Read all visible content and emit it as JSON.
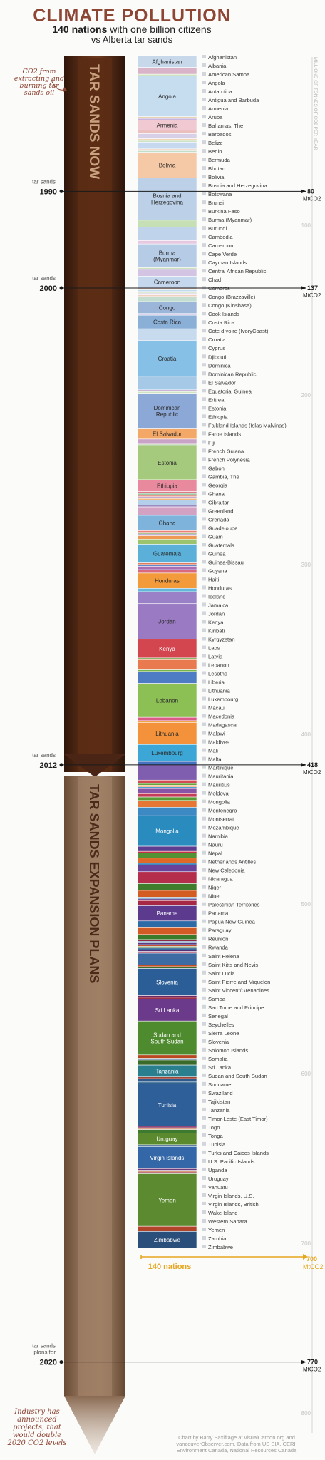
{
  "title": "CLIMATE POLLUTION",
  "subtitle": {
    "bold_part": "140 nations",
    "rest_line1": "with one billion citizens",
    "line2": "vs Alberta tar sands"
  },
  "annotation_top": "CO2 from extracting and burning tar sands oil",
  "annotation_bottom": "Industry has announced projects, that would double 2020 CO2 levels",
  "arrow_labels": {
    "now": "TAR SANDS NOW",
    "expansion": "TAR SANDS EXPANSION PLANS"
  },
  "axis_title": "MILLIONS OF TONNES OF CO2 PER YEAR",
  "nations_label": "140 nations",
  "credit": "Chart by Barry Saxifrage at visualCarbon.org and vancouverObserver.com. Data from US EIA, CERI, Environment Canada, National Resources Canada",
  "colors": {
    "title": "#8d4534",
    "accent_orange": "#e7a61f",
    "arrow_dark": "#4a2414",
    "arrow_light": "#8a6a52"
  },
  "chart_data": {
    "type": "bar",
    "ylabel": "MILLIONS OF TONNES OF CO2 PER YEAR",
    "ylim": [
      0,
      800
    ],
    "yticks": [
      100,
      200,
      300,
      400,
      500,
      600,
      700,
      800
    ],
    "markers": [
      {
        "pre": "tar sands",
        "year": "1990",
        "value": 80,
        "value_label": "80",
        "unit": "MtCO2"
      },
      {
        "pre": "tar sands",
        "year": "2000",
        "value": 137,
        "value_label": "137",
        "unit": "MtCO2"
      },
      {
        "pre": "tar sands",
        "year": "2012",
        "value": 418,
        "value_label": "418",
        "unit": "MtCO2"
      },
      {
        "pre": "tar sands plans for",
        "year": "2020",
        "value": 770,
        "value_label": "770",
        "unit": "MtCO2"
      }
    ],
    "nations_total": {
      "value": 700,
      "value_label": "700",
      "unit": "MtCO2"
    },
    "stack": [
      {
        "name": "Afghanistan",
        "value": 7,
        "color": "#c7d8ea",
        "label": "Afghanistan"
      },
      {
        "name": "Albania",
        "value": 4,
        "color": "#d9b3c7"
      },
      {
        "name": "American Samoa",
        "value": 1,
        "color": "#cfe3c0"
      },
      {
        "name": "Angola",
        "value": 24,
        "color": "#c6dcef",
        "label": "Angola"
      },
      {
        "name": "Antarctica",
        "value": 1,
        "color": "#e8d2b4"
      },
      {
        "name": "Antigua and Barbuda",
        "value": 1,
        "color": "#c9b5db"
      },
      {
        "name": "Armenia",
        "value": 6,
        "color": "#f1c9d2",
        "label": "Armenia"
      },
      {
        "name": "Aruba",
        "value": 2,
        "color": "#ecbfbf"
      },
      {
        "name": "Bahamas, The",
        "value": 3,
        "color": "#d7d0e6"
      },
      {
        "name": "Barbados",
        "value": 1,
        "color": "#f0d7b7"
      },
      {
        "name": "Belize",
        "value": 1,
        "color": "#cfe2c3"
      },
      {
        "name": "Benin",
        "value": 4,
        "color": "#c7d9ee"
      },
      {
        "name": "Bermuda",
        "value": 1,
        "color": "#f3d3c3"
      },
      {
        "name": "Bhutan",
        "value": 1,
        "color": "#c3ddc8"
      },
      {
        "name": "Bolivia",
        "value": 15,
        "color": "#f6c9a6",
        "label": "Bolivia"
      },
      {
        "name": "Bosnia and Herzegovina",
        "value": 25,
        "color": "#bcd1e8",
        "label": "Bosnia and Herzegovina"
      },
      {
        "name": "Botswana",
        "value": 4,
        "color": "#c6dfb5"
      },
      {
        "name": "Brunei",
        "value": 8,
        "color": "#bfd4ea"
      },
      {
        "name": "Burkina Faso",
        "value": 2,
        "color": "#e6c9e0"
      },
      {
        "name": "Burma (Myanmar)",
        "value": 14,
        "color": "#b6cbe6",
        "label": "Burma (Myanmar)"
      },
      {
        "name": "Burundi",
        "value": 1,
        "color": "#cce3b9"
      },
      {
        "name": "Cambodia",
        "value": 4,
        "color": "#d2c4e2"
      },
      {
        "name": "Cameroon",
        "value": 7,
        "color": "#c4d7ec",
        "label": "Cameroon"
      },
      {
        "name": "Cape Verde",
        "value": 1,
        "color": "#e9c8b5"
      },
      {
        "name": "Cayman Islands",
        "value": 1,
        "color": "#c1d9ec"
      },
      {
        "name": "Central African Republic",
        "value": 1,
        "color": "#d8e7c5"
      },
      {
        "name": "Chad",
        "value": 1,
        "color": "#ccc3de"
      },
      {
        "name": "Comoros",
        "value": 1,
        "color": "#f1d0c0"
      },
      {
        "name": "Congo (Brazzaville)",
        "value": 3,
        "color": "#c3ddd0"
      },
      {
        "name": "Congo (Kinshasa)",
        "value": 7,
        "color": "#9bb6d9",
        "label": "Congo"
      },
      {
        "name": "Cook Islands",
        "value": 1,
        "color": "#d5c3e4"
      },
      {
        "name": "Costa Rica",
        "value": 8,
        "color": "#8ab0d8",
        "label": "Costa Rica"
      },
      {
        "name": "Cote dIvoire (IvoryCoast)",
        "value": 7,
        "color": "#c8dbee"
      },
      {
        "name": "Croatia",
        "value": 21,
        "color": "#86c0e6",
        "label": "Croatia"
      },
      {
        "name": "Cyprus",
        "value": 8,
        "color": "#a6c9e8"
      },
      {
        "name": "Djibouti",
        "value": 1,
        "color": "#c2a6cf"
      },
      {
        "name": "Dominica",
        "value": 1,
        "color": "#cfe3c2"
      },
      {
        "name": "Dominican Republic",
        "value": 21,
        "color": "#8ca8d6",
        "label": "Dominican Republic"
      },
      {
        "name": "El Salvador",
        "value": 6,
        "color": "#f3a867",
        "label": "El Salvador"
      },
      {
        "name": "Equatorial Guinea",
        "value": 3,
        "color": "#c9a3c7"
      },
      {
        "name": "Eritrea",
        "value": 1,
        "color": "#bcd5a7"
      },
      {
        "name": "Estonia",
        "value": 20,
        "color": "#a6ca7d",
        "label": "Estonia"
      },
      {
        "name": "Ethiopia",
        "value": 7,
        "color": "#e8899d",
        "label": "Ethiopia"
      },
      {
        "name": "Falkland Islands (Islas Malvinas)",
        "value": 1,
        "color": "#d97a85"
      },
      {
        "name": "Faroe Islands",
        "value": 1,
        "color": "#9fc6a5"
      },
      {
        "name": "Fiji",
        "value": 1,
        "color": "#e49a8e"
      },
      {
        "name": "French Guiana",
        "value": 1,
        "color": "#bca2cc"
      },
      {
        "name": "French Polynesia",
        "value": 1,
        "color": "#f3b97e"
      },
      {
        "name": "Gabon",
        "value": 3,
        "color": "#b3cfe9"
      },
      {
        "name": "Gambia, The",
        "value": 1,
        "color": "#9e8ac0"
      },
      {
        "name": "Georgia",
        "value": 5,
        "color": "#d3a1c2"
      },
      {
        "name": "Ghana",
        "value": 9,
        "color": "#7eb4dc",
        "label": "Ghana"
      },
      {
        "name": "Gibraltar",
        "value": 1,
        "color": "#e9837a"
      },
      {
        "name": "Greenland",
        "value": 1,
        "color": "#8fb472"
      },
      {
        "name": "Grenada",
        "value": 1,
        "color": "#8a6fb0"
      },
      {
        "name": "Guadeloupe",
        "value": 2,
        "color": "#ef9a54"
      },
      {
        "name": "Guam",
        "value": 3,
        "color": "#9cc46e"
      },
      {
        "name": "Guatemala",
        "value": 11,
        "color": "#5ab0d9",
        "label": "Guatemala"
      },
      {
        "name": "Guinea",
        "value": 1,
        "color": "#e07b62"
      },
      {
        "name": "Guinea-Bissau",
        "value": 1,
        "color": "#5e8dcc"
      },
      {
        "name": "Guyana",
        "value": 2,
        "color": "#a86fb5"
      },
      {
        "name": "Haiti",
        "value": 2,
        "color": "#d96a7c"
      },
      {
        "name": "Honduras",
        "value": 9,
        "color": "#f39a3a",
        "label": "Honduras"
      },
      {
        "name": "Iceland",
        "value": 2,
        "color": "#67b6d9"
      },
      {
        "name": "Jamaica",
        "value": 7,
        "color": "#9a80c6"
      },
      {
        "name": "Jordan",
        "value": 21,
        "color": "#9b7ac4",
        "label": "Jordan"
      },
      {
        "name": "Kenya",
        "value": 11,
        "color": "#d4464f",
        "label": "Kenya"
      },
      {
        "name": "Kiribati",
        "value": 1,
        "color": "#69a948"
      },
      {
        "name": "Kyrgyzstan",
        "value": 6,
        "color": "#e9794e"
      },
      {
        "name": "Laos",
        "value": 1,
        "color": "#78b44e"
      },
      {
        "name": "Latvia",
        "value": 7,
        "color": "#4d7bc4"
      },
      {
        "name": "Lebanon",
        "value": 20,
        "color": "#8cc055",
        "label": "Lebanon"
      },
      {
        "name": "Lesotho",
        "value": 2,
        "color": "#da5a86"
      },
      {
        "name": "Liberia",
        "value": 1,
        "color": "#efa648"
      },
      {
        "name": "Lithuania",
        "value": 13,
        "color": "#f3923a",
        "label": "Lithuania"
      },
      {
        "name": "Luxembourg",
        "value": 10,
        "color": "#3ca7d6",
        "label": "Luxembourg"
      },
      {
        "name": "Macau",
        "value": 2,
        "color": "#4773bf"
      },
      {
        "name": "Macedonia",
        "value": 9,
        "color": "#7f5daf"
      },
      {
        "name": "Madagascar",
        "value": 2,
        "color": "#d14a55"
      },
      {
        "name": "Malawi",
        "value": 1,
        "color": "#63a53c"
      },
      {
        "name": "Maldives",
        "value": 1,
        "color": "#ec7f36"
      },
      {
        "name": "Mali",
        "value": 1,
        "color": "#3f9acf"
      },
      {
        "name": "Malta",
        "value": 3,
        "color": "#8854a8"
      },
      {
        "name": "Martinique",
        "value": 2,
        "color": "#c43c58"
      },
      {
        "name": "Mauritania",
        "value": 2,
        "color": "#5a9a35"
      },
      {
        "name": "Mauritius",
        "value": 4,
        "color": "#e77734"
      },
      {
        "name": "Moldova",
        "value": 5,
        "color": "#3d89c4"
      },
      {
        "name": "Mongolia",
        "value": 18,
        "color": "#2a8bbf",
        "label": "Mongolia"
      },
      {
        "name": "Montenegro",
        "value": 3,
        "color": "#5c3d90"
      },
      {
        "name": "Montserrat",
        "value": 1,
        "color": "#c42f48"
      },
      {
        "name": "Mozambique",
        "value": 3,
        "color": "#519234"
      },
      {
        "name": "Namibia",
        "value": 3,
        "color": "#df6a28"
      },
      {
        "name": "Nauru",
        "value": 1,
        "color": "#2f7cb8"
      },
      {
        "name": "Nepal",
        "value": 4,
        "color": "#6a4199"
      },
      {
        "name": "Netherlands Antilles",
        "value": 7,
        "color": "#b42e4c"
      },
      {
        "name": "New Caledonia",
        "value": 4,
        "color": "#3f7d2d"
      },
      {
        "name": "Nicaragua",
        "value": 4,
        "color": "#d35c23"
      },
      {
        "name": "Niger",
        "value": 1,
        "color": "#2a6eaa"
      },
      {
        "name": "Niue",
        "value": 1,
        "color": "#5f3a8e"
      },
      {
        "name": "Palestinian Territories",
        "value": 3,
        "color": "#a62844"
      },
      {
        "name": "Panama",
        "value": 9,
        "color": "#5c3b8f",
        "label": "Panama"
      },
      {
        "name": "Papua New Guinea",
        "value": 4,
        "color": "#2d6ba7"
      },
      {
        "name": "Paraguay",
        "value": 4,
        "color": "#d25a24"
      },
      {
        "name": "Reunion",
        "value": 3,
        "color": "#3a7a2b"
      },
      {
        "name": "Rwanda",
        "value": 1,
        "color": "#8f2a44"
      },
      {
        "name": "Saint Helena",
        "value": 1,
        "color": "#245f98"
      },
      {
        "name": "Saint Kitts and Nevis",
        "value": 1,
        "color": "#53337f"
      },
      {
        "name": "Saint Lucia",
        "value": 1,
        "color": "#c6512a"
      },
      {
        "name": "Saint Pierre and Miquelon",
        "value": 1,
        "color": "#356f2c"
      },
      {
        "name": "Saint Vincent/Grenadines",
        "value": 1,
        "color": "#2a5f95"
      },
      {
        "name": "Samoa",
        "value": 1,
        "color": "#4f3079"
      },
      {
        "name": "Sao Tome and Principe",
        "value": 1,
        "color": "#9b2b44"
      },
      {
        "name": "Senegal",
        "value": 7,
        "color": "#3d6ba4"
      },
      {
        "name": "Seychelles",
        "value": 1,
        "color": "#c24f25"
      },
      {
        "name": "Sierra Leone",
        "value": 1,
        "color": "#3d6e2c"
      },
      {
        "name": "Slovenia",
        "value": 16,
        "color": "#2b5d97",
        "label": "Slovenia"
      },
      {
        "name": "Solomon Islands",
        "value": 1,
        "color": "#6a2a64"
      },
      {
        "name": "Somalia",
        "value": 1,
        "color": "#9b2a41"
      },
      {
        "name": "Sri Lanka",
        "value": 13,
        "color": "#6b3a8a",
        "label": "Sri Lanka"
      },
      {
        "name": "Sudan and South Sudan",
        "value": 20,
        "color": "#4e8a2e",
        "label": "Sudan and South Sudan"
      },
      {
        "name": "Suriname",
        "value": 2,
        "color": "#b8471f"
      },
      {
        "name": "Swaziland",
        "value": 1,
        "color": "#2d5f8f"
      },
      {
        "name": "Tajikistan",
        "value": 3,
        "color": "#3a6b2a"
      },
      {
        "name": "Tanzania",
        "value": 7,
        "color": "#2a7f8f",
        "label": "Tanzania"
      },
      {
        "name": "Timor-Leste (East Timor)",
        "value": 1,
        "color": "#9b3a2a"
      },
      {
        "name": "Togo",
        "value": 2,
        "color": "#2e5a8c"
      },
      {
        "name": "Tonga",
        "value": 1,
        "color": "#2c5e8a"
      },
      {
        "name": "Tunisia",
        "value": 25,
        "color": "#2f5f98",
        "label": "Tunisia"
      },
      {
        "name": "Turks and Caicos Islands",
        "value": 1,
        "color": "#8a3a6a"
      },
      {
        "name": "U.S. Pacific Islands",
        "value": 1,
        "color": "#c05020"
      },
      {
        "name": "Uganda",
        "value": 2,
        "color": "#3d7a2f"
      },
      {
        "name": "Uruguay",
        "value": 7,
        "color": "#5b8a2e",
        "label": "Uruguay"
      },
      {
        "name": "Vanuatu",
        "value": 1,
        "color": "#27567f"
      },
      {
        "name": "Virgin Islands, U.S.",
        "value": 13,
        "color": "#3467a8",
        "label": "Virgin Islands"
      },
      {
        "name": "Virgin Islands, British",
        "value": 1,
        "color": "#6a3a7a"
      },
      {
        "name": "Wake Island",
        "value": 1,
        "color": "#c05a2a"
      },
      {
        "name": "Western Sahara",
        "value": 1,
        "color": "#9b2a3a"
      },
      {
        "name": "Yemen",
        "value": 31,
        "color": "#5c8a30",
        "label": "Yemen"
      },
      {
        "name": "Zambia",
        "value": 3,
        "color": "#b0452a"
      },
      {
        "name": "Zimbabwe",
        "value": 10,
        "color": "#2a4f7a",
        "label": "Zimbabwe"
      }
    ]
  }
}
